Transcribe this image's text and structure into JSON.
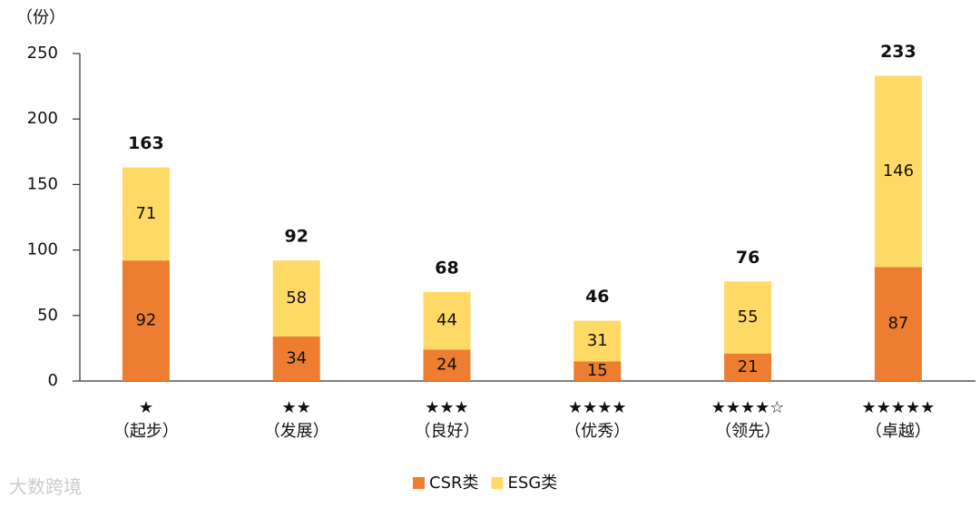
{
  "chart_data": {
    "type": "stacked_bar",
    "y_label": "（份）",
    "categories": [
      [
        "★",
        "（起步）"
      ],
      [
        "★★",
        "（发展）"
      ],
      [
        "★★★",
        "（良好）"
      ],
      [
        "★★★★",
        "（优秀）"
      ],
      [
        "★★★★☆",
        "（领先）"
      ],
      [
        "★★★★★",
        "（卓越）"
      ]
    ],
    "series": [
      {
        "name": "CSR类",
        "color": "#ed7d31",
        "values": [
          92,
          34,
          24,
          15,
          21,
          87
        ]
      },
      {
        "name": "ESG类",
        "color": "#ffd966",
        "values": [
          71,
          58,
          44,
          31,
          55,
          146
        ]
      }
    ],
    "totals": [
      163,
      92,
      68,
      46,
      76,
      233
    ],
    "ylim": [
      0,
      250
    ],
    "yticks": [
      0,
      50,
      100,
      150,
      200,
      250
    ],
    "grid": false,
    "legend": "bottom",
    "watermark": "大数跨境"
  }
}
